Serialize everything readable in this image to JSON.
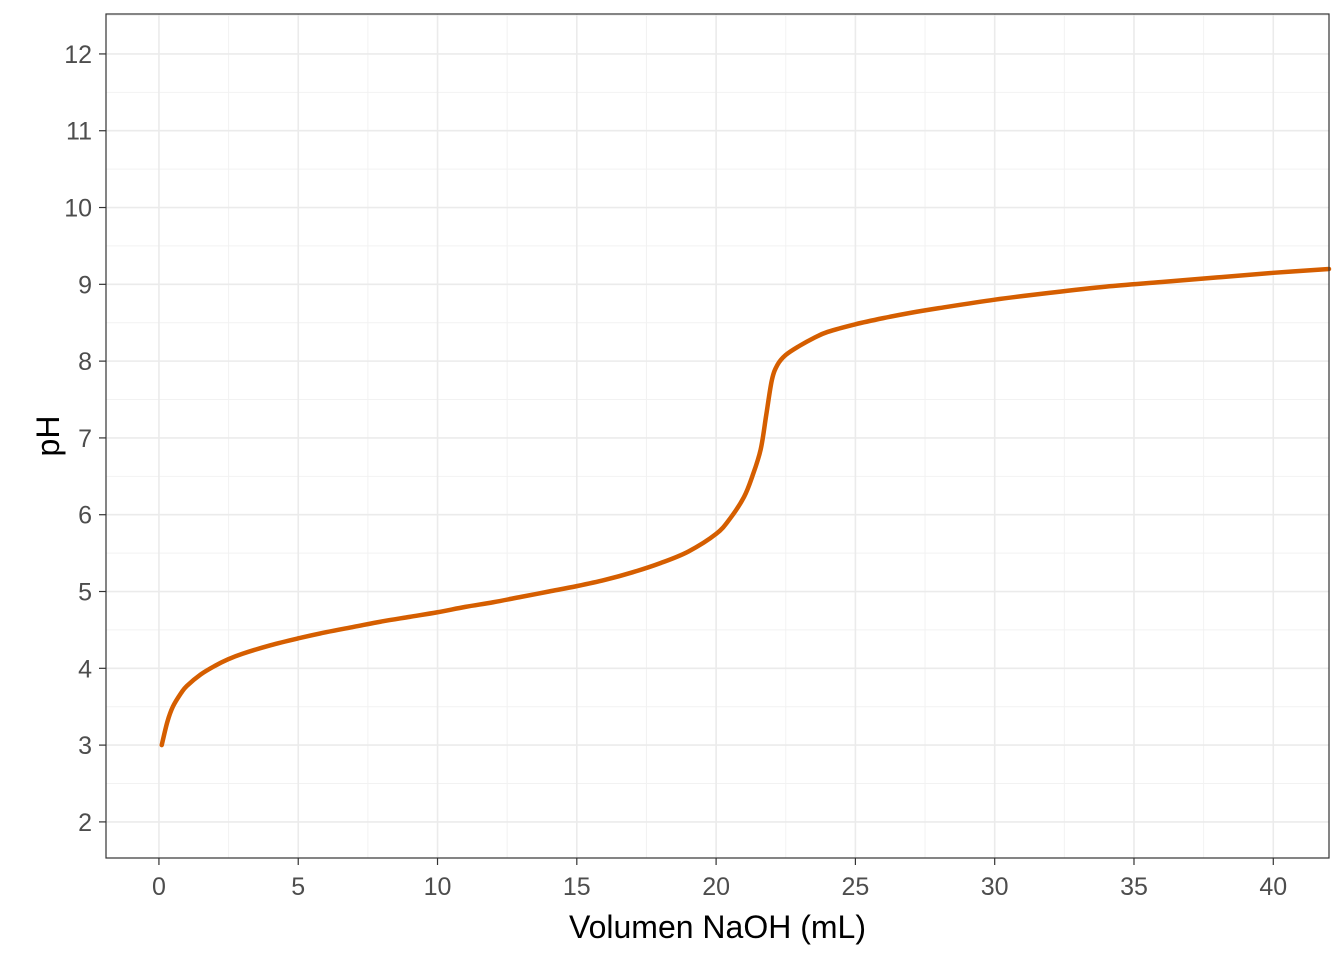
{
  "chart_data": {
    "type": "line",
    "xlabel": "Volumen NaOH (mL)",
    "ylabel": "pH",
    "xlim": [
      -1.9,
      42
    ],
    "ylim": [
      1.53,
      12.52
    ],
    "x_ticks": [
      0,
      5,
      10,
      15,
      20,
      25,
      30,
      35,
      40
    ],
    "y_ticks": [
      2,
      3,
      4,
      5,
      6,
      7,
      8,
      9,
      10,
      11,
      12
    ],
    "grid": true,
    "theme": "black-and-white panel",
    "line_color": "#D55E00",
    "series": [
      {
        "x": [
          0.1,
          0.3,
          0.5,
          0.8,
          1.0,
          1.5,
          2.0,
          2.5,
          3.0,
          4.0,
          5.0,
          6.0,
          7.0,
          8.0,
          9.0,
          10.0,
          11.0,
          12.0,
          13.0,
          14.0,
          15.0,
          16.0,
          17.0,
          18.0,
          19.0,
          20.0,
          20.5,
          21.0,
          21.3,
          21.6,
          21.8,
          22.0,
          22.2,
          22.5,
          23.0,
          23.5,
          24.0,
          25.0,
          26.0,
          27.0,
          28.0,
          30.0,
          32.0,
          34.0,
          36.0,
          38.0,
          40.0,
          42.0
        ],
        "y": [
          3.0,
          3.3,
          3.5,
          3.68,
          3.77,
          3.92,
          4.03,
          4.12,
          4.19,
          4.3,
          4.39,
          4.47,
          4.54,
          4.61,
          4.67,
          4.73,
          4.8,
          4.86,
          4.93,
          5.0,
          5.07,
          5.15,
          5.25,
          5.37,
          5.52,
          5.75,
          5.95,
          6.23,
          6.5,
          6.85,
          7.3,
          7.75,
          7.95,
          8.08,
          8.2,
          8.3,
          8.38,
          8.48,
          8.56,
          8.63,
          8.69,
          8.8,
          8.89,
          8.97,
          9.03,
          9.09,
          9.15,
          9.2
        ]
      }
    ]
  }
}
